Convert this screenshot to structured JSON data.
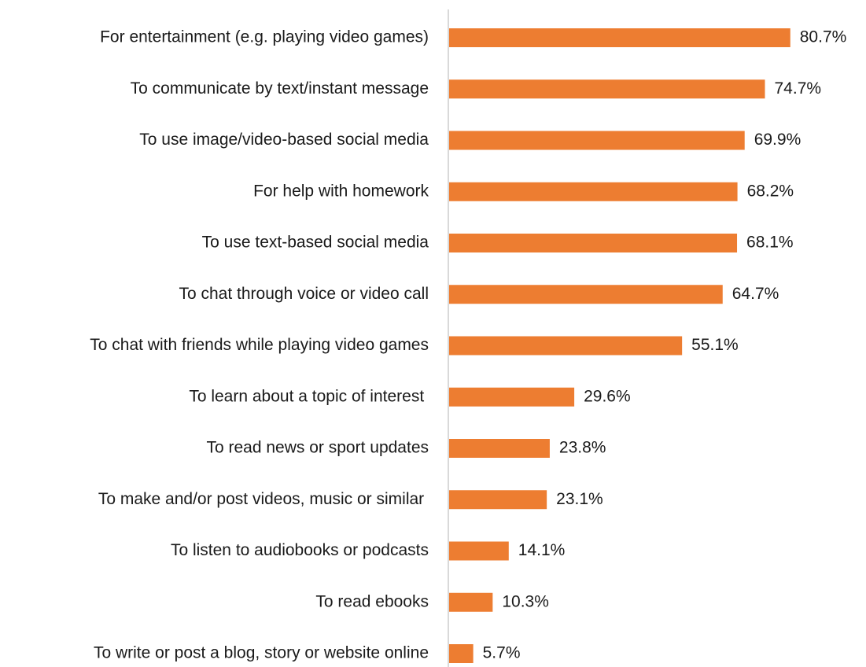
{
  "chart_data": {
    "type": "bar",
    "orientation": "horizontal",
    "categories": [
      "For entertainment (e.g. playing video games)",
      "To communicate by text/instant message",
      "To use image/video-based social media",
      "For help with homework",
      "To use text-based social media",
      "To chat through voice or video call",
      "To chat with friends while playing video games",
      "To learn about a topic of interest ",
      "To read news or sport updates",
      "To make and/or post videos, music or similar ",
      "To listen to audiobooks or podcasts",
      "To read ebooks",
      "To write or post a blog, story or website online"
    ],
    "values": [
      80.7,
      74.7,
      69.9,
      68.2,
      68.1,
      64.7,
      55.1,
      29.6,
      23.8,
      23.1,
      14.1,
      10.3,
      5.7
    ],
    "value_labels": [
      "80.7%",
      "74.7%",
      "69.9%",
      "68.2%",
      "68.1%",
      "64.7%",
      "55.1%",
      "29.6%",
      "23.8%",
      "23.1%",
      "14.1%",
      "10.3%",
      "5.7%"
    ],
    "title": "",
    "xlabel": "",
    "ylabel": "",
    "xlim": [
      0,
      100
    ],
    "grid": false,
    "legend": "none",
    "bar_color": "#ED7D31",
    "axis_color": "#d9d9d9"
  }
}
